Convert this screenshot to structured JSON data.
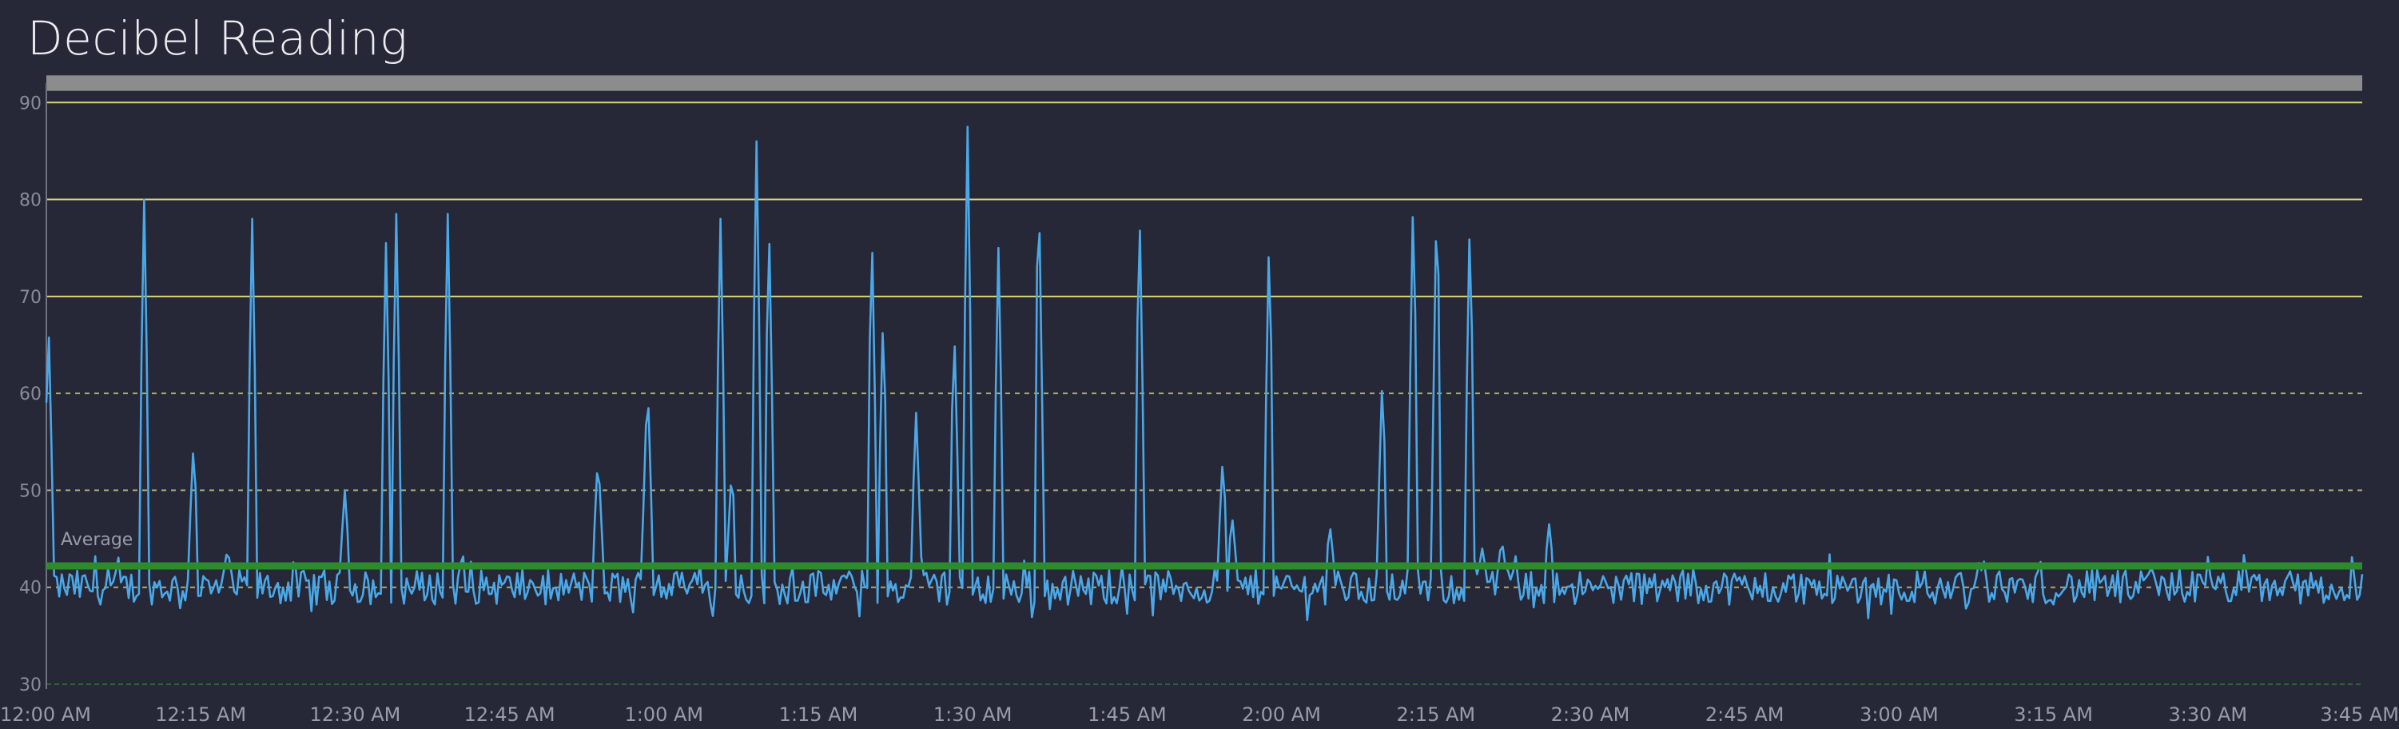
{
  "panel": {
    "title": "Decibel Reading"
  },
  "colors": {
    "background": "#262737",
    "series": "#4aa8e8",
    "average": "#2e8a2e",
    "threshold_solid": "#e6e27a",
    "threshold_dashed": "#d8d890",
    "low_band": "#2f7a2f",
    "top_band": "#8c8c8c",
    "axis": "#707280"
  },
  "chart_data": {
    "type": "line",
    "title": "Decibel Reading",
    "xlabel": "",
    "ylabel": "",
    "ylim": [
      30,
      92
    ],
    "y_ticks": [
      30,
      40,
      50,
      60,
      70,
      80,
      90
    ],
    "x_ticks": [
      "12:00 AM",
      "12:15 AM",
      "12:30 AM",
      "12:45 AM",
      "1:00 AM",
      "1:15 AM",
      "1:30 AM",
      "1:45 AM",
      "2:00 AM",
      "2:15 AM",
      "2:30 AM",
      "2:45 AM",
      "3:00 AM",
      "3:15 AM",
      "3:30 AM",
      "3:45 AM"
    ],
    "x_range_minutes": [
      0,
      225
    ],
    "x_unit": "minutes after 12:00 AM",
    "grid": false,
    "legend": "none",
    "baseline_db": 40,
    "average": {
      "label": "Average",
      "value": 42.2
    },
    "thresholds": [
      {
        "value": 90,
        "style": "solid"
      },
      {
        "value": 80,
        "style": "solid"
      },
      {
        "value": 70,
        "style": "solid"
      },
      {
        "value": 60,
        "style": "dashed"
      },
      {
        "value": 50,
        "style": "dashed"
      },
      {
        "value": 40,
        "style": "dashed"
      },
      {
        "value": 30,
        "style": "dashed-green"
      }
    ],
    "top_band": {
      "from": 91.2,
      "to": 92.8
    },
    "series": [
      {
        "points_note": "baseline noise around 40 dB; spikes listed below",
        "spikes": [
          {
            "x": 0.2,
            "y": 68
          },
          {
            "x": 9.5,
            "y": 80
          },
          {
            "x": 14.3,
            "y": 55
          },
          {
            "x": 17.6,
            "y": 44
          },
          {
            "x": 20.0,
            "y": 78
          },
          {
            "x": 29.0,
            "y": 50
          },
          {
            "x": 33.0,
            "y": 75.5
          },
          {
            "x": 34.0,
            "y": 78.5
          },
          {
            "x": 39.0,
            "y": 78.5
          },
          {
            "x": 53.6,
            "y": 54
          },
          {
            "x": 58.4,
            "y": 62
          },
          {
            "x": 65.5,
            "y": 78
          },
          {
            "x": 66.6,
            "y": 52.5
          },
          {
            "x": 69.0,
            "y": 86
          },
          {
            "x": 70.2,
            "y": 78.5
          },
          {
            "x": 80.2,
            "y": 77.5
          },
          {
            "x": 81.3,
            "y": 68.5
          },
          {
            "x": 84.5,
            "y": 58
          },
          {
            "x": 88.2,
            "y": 67
          },
          {
            "x": 89.5,
            "y": 87.5
          },
          {
            "x": 92.5,
            "y": 75
          },
          {
            "x": 96.4,
            "y": 83.5
          },
          {
            "x": 106.2,
            "y": 80
          },
          {
            "x": 114.3,
            "y": 53.5
          },
          {
            "x": 115.2,
            "y": 47.5
          },
          {
            "x": 118.8,
            "y": 77
          },
          {
            "x": 124.7,
            "y": 46.5
          },
          {
            "x": 129.8,
            "y": 62
          },
          {
            "x": 132.8,
            "y": 81.5
          },
          {
            "x": 135.1,
            "y": 82.5
          },
          {
            "x": 138.3,
            "y": 79
          },
          {
            "x": 139.5,
            "y": 44
          },
          {
            "x": 141.4,
            "y": 45
          },
          {
            "x": 146.0,
            "y": 46.5
          }
        ]
      }
    ]
  }
}
